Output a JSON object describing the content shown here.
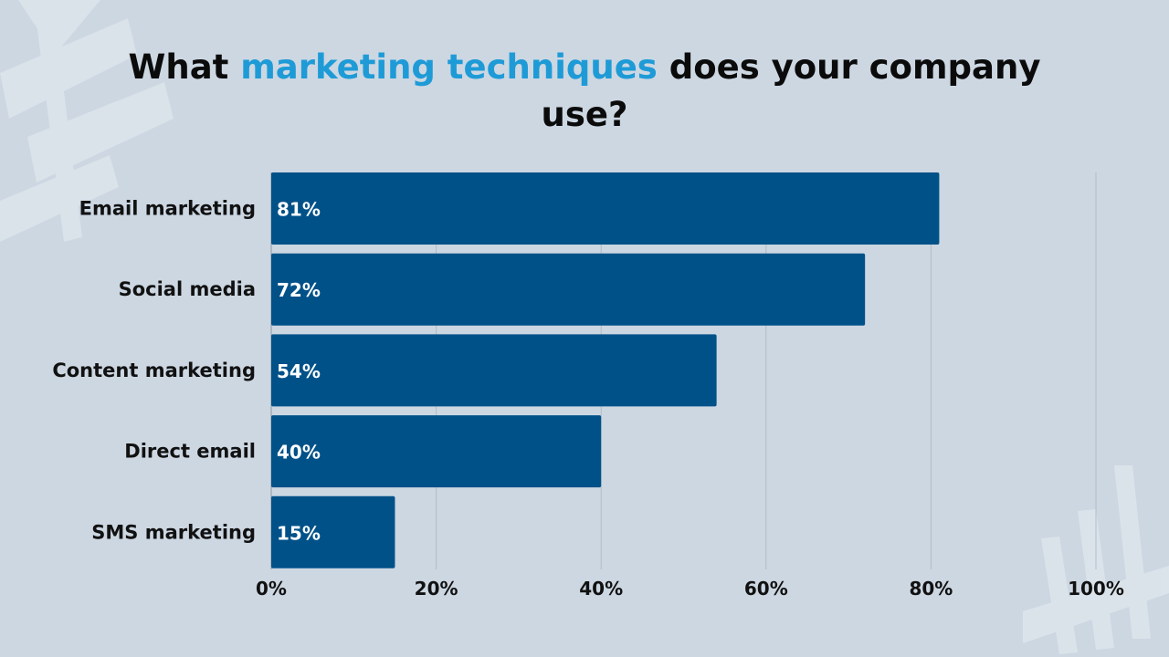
{
  "title": {
    "before": "What ",
    "highlight": "marketing techniques",
    "after": " does your company use?"
  },
  "colors": {
    "background": "#ccd7e2",
    "bar": "#015189",
    "title_accent": "#1e9bd7",
    "title_text": "#0b0b0b"
  },
  "chart_data": {
    "type": "bar",
    "orientation": "horizontal",
    "categories": [
      "Email marketing",
      "Social media",
      "Content marketing",
      "Direct email",
      "SMS marketing"
    ],
    "values": [
      81,
      72,
      54,
      40,
      15
    ],
    "data_labels": [
      "81%",
      "72%",
      "54%",
      "40%",
      "15%"
    ],
    "x_ticks": [
      "0%",
      "20%",
      "40%",
      "60%",
      "80%",
      "100%"
    ],
    "xlim": [
      0,
      100
    ],
    "grid": true,
    "legend": "none"
  }
}
